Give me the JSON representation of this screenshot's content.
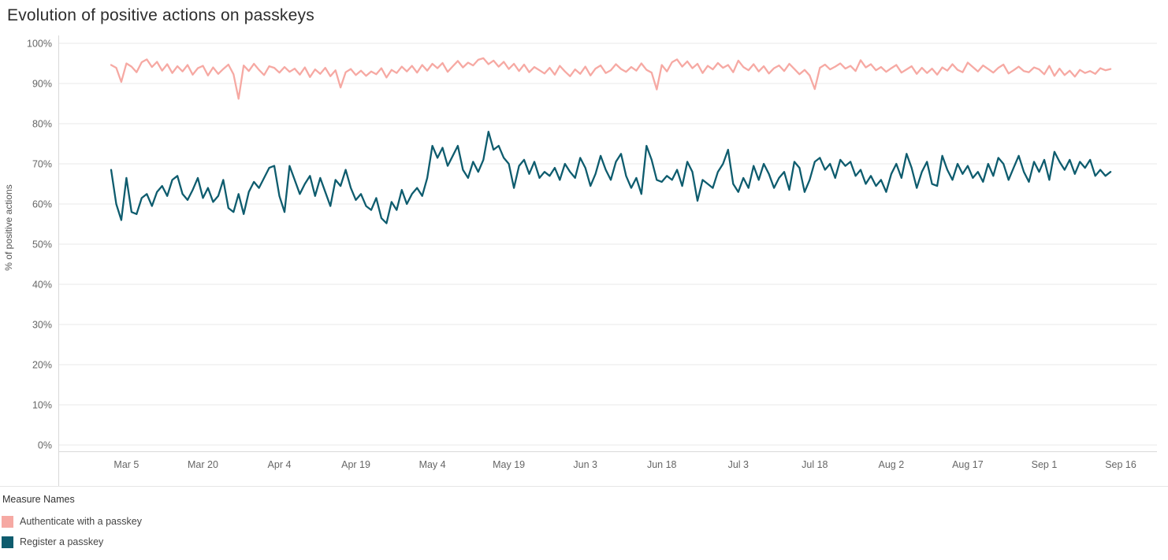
{
  "title": "Evolution of positive actions on passkeys",
  "y_axis_title": "% of positive actions",
  "legend": {
    "title": "Measure Names",
    "items": [
      {
        "label": "Authenticate with a passkey",
        "color": "#F6A9A3"
      },
      {
        "label": "Register a passkey",
        "color": "#0E5C6E"
      }
    ]
  },
  "chart_data": {
    "type": "line",
    "title": "Evolution of positive actions on passkeys",
    "xlabel": "",
    "ylabel": "% of positive actions",
    "ylim": [
      0,
      100
    ],
    "grid": "horizontal",
    "legend_position": "bottom-left",
    "x_unit": "daily, day index 0 = Mar 2",
    "x_domain_days": 198,
    "y_ticks": [
      {
        "v": 0,
        "label": "0%"
      },
      {
        "v": 10,
        "label": "10%"
      },
      {
        "v": 20,
        "label": "20%"
      },
      {
        "v": 30,
        "label": "30%"
      },
      {
        "v": 40,
        "label": "40%"
      },
      {
        "v": 50,
        "label": "50%"
      },
      {
        "v": 60,
        "label": "60%"
      },
      {
        "v": 70,
        "label": "70%"
      },
      {
        "v": 80,
        "label": "80%"
      },
      {
        "v": 90,
        "label": "90%"
      },
      {
        "v": 100,
        "label": "100%"
      }
    ],
    "x_ticks": [
      {
        "d": 3,
        "label": "Mar 5"
      },
      {
        "d": 18,
        "label": "Mar 20"
      },
      {
        "d": 33,
        "label": "Apr 4"
      },
      {
        "d": 48,
        "label": "Apr 19"
      },
      {
        "d": 63,
        "label": "May 4"
      },
      {
        "d": 78,
        "label": "May 19"
      },
      {
        "d": 93,
        "label": "Jun 3"
      },
      {
        "d": 108,
        "label": "Jun 18"
      },
      {
        "d": 123,
        "label": "Jul 3"
      },
      {
        "d": 138,
        "label": "Jul 18"
      },
      {
        "d": 153,
        "label": "Aug 2"
      },
      {
        "d": 168,
        "label": "Aug 17"
      },
      {
        "d": 183,
        "label": "Sep 1"
      },
      {
        "d": 198,
        "label": "Sep 16"
      }
    ],
    "series": [
      {
        "name": "Authenticate with a passkey",
        "color": "#F6A9A3",
        "values": [
          94.6,
          93.9,
          90.4,
          95.0,
          94.2,
          92.8,
          95.3,
          96.0,
          94.1,
          95.4,
          93.2,
          94.8,
          92.6,
          94.3,
          93.0,
          94.6,
          92.2,
          93.8,
          94.4,
          92.0,
          94.0,
          92.4,
          93.6,
          94.7,
          92.3,
          86.2,
          94.5,
          93.1,
          94.9,
          93.4,
          92.1,
          94.3,
          93.9,
          92.7,
          94.1,
          92.9,
          93.7,
          92.2,
          94.0,
          91.6,
          93.5,
          92.4,
          93.9,
          91.8,
          93.3,
          89.0,
          92.8,
          93.6,
          92.1,
          93.2,
          91.9,
          93.0,
          92.3,
          93.8,
          91.5,
          93.4,
          92.6,
          94.2,
          93.0,
          94.4,
          92.7,
          94.6,
          93.2,
          94.9,
          93.8,
          95.1,
          92.9,
          94.3,
          95.6,
          94.0,
          95.2,
          94.5,
          95.9,
          96.3,
          94.8,
          95.7,
          94.2,
          95.4,
          93.6,
          94.9,
          93.1,
          94.7,
          92.8,
          94.1,
          93.3,
          92.5,
          93.9,
          92.2,
          94.4,
          93.0,
          91.8,
          93.5,
          92.4,
          94.2,
          92.0,
          93.7,
          94.5,
          92.6,
          93.3,
          94.8,
          93.6,
          92.9,
          94.1,
          93.2,
          95.0,
          93.4,
          92.7,
          88.5,
          94.6,
          93.0,
          95.3,
          96.0,
          94.2,
          95.5,
          93.8,
          94.9,
          92.6,
          94.4,
          93.5,
          95.1,
          93.9,
          94.6,
          92.8,
          95.7,
          94.1,
          93.3,
          94.8,
          93.0,
          94.3,
          92.5,
          93.8,
          94.5,
          93.1,
          94.9,
          93.6,
          92.3,
          93.4,
          92.0,
          88.6,
          93.9,
          94.7,
          93.5,
          94.2,
          95.0,
          93.7,
          94.4,
          93.1,
          95.8,
          94.0,
          94.8,
          93.3,
          94.1,
          92.9,
          93.8,
          94.6,
          92.7,
          93.5,
          94.3,
          92.4,
          93.9,
          92.6,
          93.7,
          92.2,
          94.0,
          93.2,
          94.8,
          93.4,
          92.8,
          95.2,
          94.1,
          93.0,
          94.5,
          93.6,
          92.7,
          93.9,
          94.7,
          92.5,
          93.3,
          94.2,
          93.1,
          92.8,
          94.0,
          93.5,
          92.3,
          94.4,
          91.9,
          93.7,
          92.1,
          93.2,
          91.7,
          93.4,
          92.6,
          93.1,
          92.4,
          93.8,
          93.3,
          93.6
        ]
      },
      {
        "name": "Register a passkey",
        "color": "#0E5C6E",
        "values": [
          68.5,
          60.0,
          56.0,
          66.5,
          58.0,
          57.5,
          61.5,
          62.5,
          59.5,
          63.0,
          64.5,
          62.0,
          66.0,
          67.0,
          62.5,
          61.0,
          63.5,
          66.5,
          61.5,
          64.0,
          60.5,
          62.0,
          66.0,
          59.0,
          58.0,
          62.5,
          57.5,
          63.0,
          65.5,
          64.0,
          66.5,
          69.0,
          69.5,
          62.0,
          58.0,
          69.5,
          66.0,
          62.5,
          65.0,
          67.0,
          62.0,
          66.5,
          63.0,
          59.5,
          66.0,
          64.5,
          68.5,
          64.0,
          61.0,
          62.5,
          59.5,
          58.5,
          61.5,
          56.5,
          55.2,
          60.5,
          58.5,
          63.5,
          60.0,
          62.5,
          64.0,
          62.0,
          66.5,
          74.5,
          71.5,
          74.0,
          69.5,
          72.0,
          74.5,
          68.5,
          66.5,
          70.5,
          68.0,
          71.0,
          78.0,
          73.5,
          74.5,
          71.5,
          70.0,
          64.0,
          69.5,
          71.0,
          67.5,
          70.5,
          66.5,
          68.0,
          67.0,
          69.0,
          66.0,
          70.0,
          68.0,
          66.5,
          71.5,
          69.0,
          64.5,
          67.5,
          72.0,
          68.5,
          66.0,
          70.5,
          72.5,
          67.0,
          64.0,
          66.5,
          62.5,
          74.5,
          71.0,
          66.0,
          65.5,
          67.0,
          66.0,
          68.5,
          64.5,
          70.5,
          68.0,
          60.8,
          66.0,
          65.0,
          64.0,
          68.0,
          70.0,
          73.5,
          65.0,
          63.0,
          66.5,
          64.0,
          69.5,
          66.0,
          70.0,
          67.5,
          64.0,
          66.5,
          68.0,
          63.5,
          70.5,
          69.0,
          63.0,
          66.0,
          70.5,
          71.5,
          68.5,
          70.0,
          66.5,
          71.0,
          69.5,
          70.5,
          67.0,
          68.5,
          65.0,
          67.0,
          64.5,
          66.0,
          63.0,
          67.5,
          70.0,
          66.5,
          72.5,
          69.0,
          64.0,
          68.0,
          70.5,
          65.0,
          64.5,
          72.0,
          68.5,
          66.0,
          70.0,
          67.5,
          69.5,
          66.5,
          68.0,
          65.5,
          70.0,
          67.0,
          71.5,
          70.0,
          66.0,
          69.0,
          72.0,
          68.0,
          65.5,
          70.5,
          68.0,
          71.0,
          66.0,
          73.0,
          70.5,
          68.5,
          71.0,
          67.5,
          70.5,
          69.0,
          71.0,
          67.0,
          68.5,
          67.0,
          68.0
        ]
      }
    ]
  }
}
